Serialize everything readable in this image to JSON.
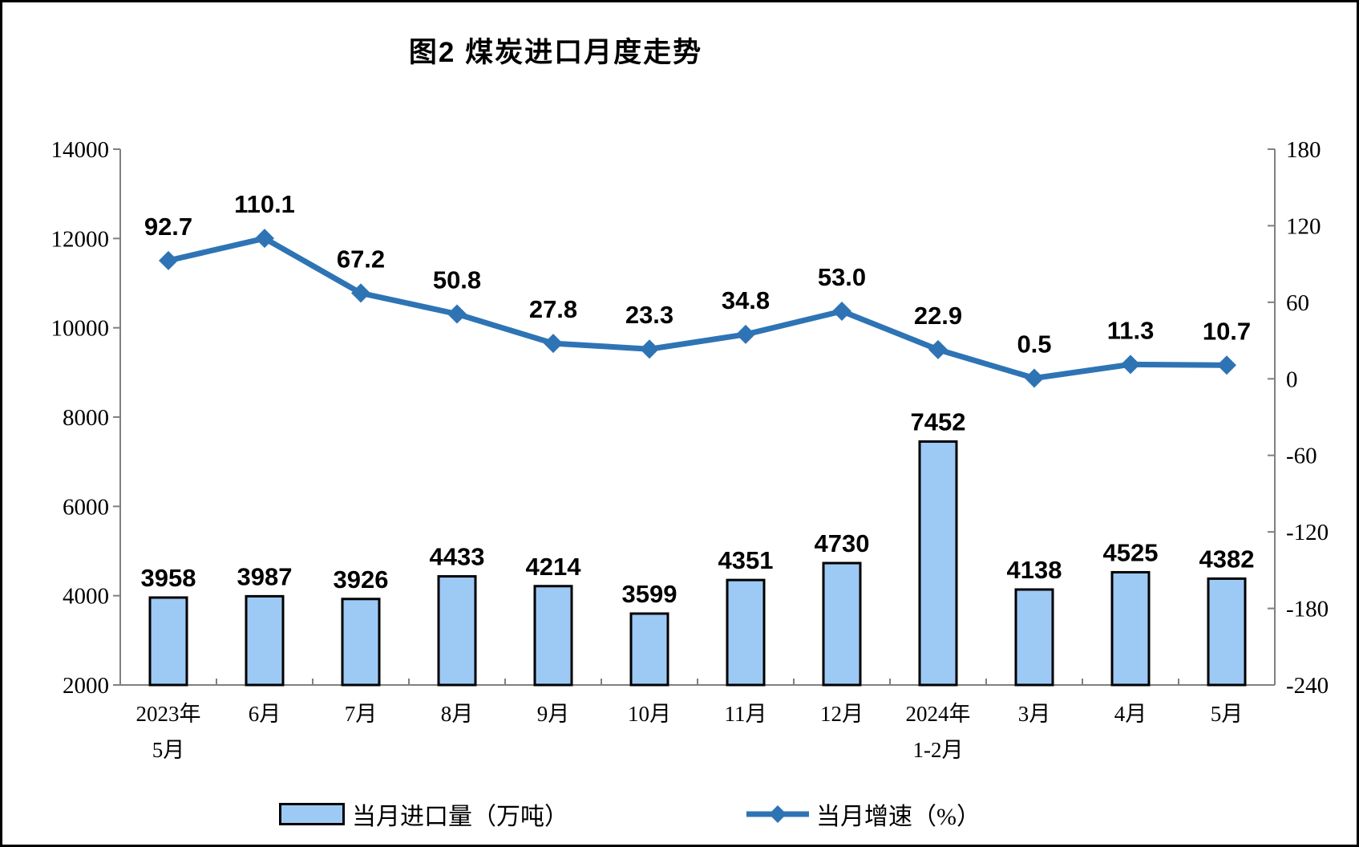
{
  "title": "图2 煤炭进口月度走势",
  "chart_data": {
    "type": "bar",
    "subtype": "combo-bar-line",
    "title": "图2 煤炭进口月度走势",
    "categories": [
      [
        "2023年",
        "5月"
      ],
      [
        "6月",
        ""
      ],
      [
        "7月",
        ""
      ],
      [
        "8月",
        ""
      ],
      [
        "9月",
        ""
      ],
      [
        "10月",
        ""
      ],
      [
        "11月",
        ""
      ],
      [
        "12月",
        ""
      ],
      [
        "2024年",
        "1-2月"
      ],
      [
        "3月",
        ""
      ],
      [
        "4月",
        ""
      ],
      [
        "5月",
        ""
      ]
    ],
    "series": [
      {
        "name": "当月进口量（万吨）",
        "type": "bar",
        "axis": "left",
        "values": [
          3958,
          3987,
          3926,
          4433,
          4214,
          3599,
          4351,
          4730,
          7452,
          4138,
          4525,
          4382
        ],
        "labels": [
          "3958",
          "3987",
          "3926",
          "4433",
          "4214",
          "3599",
          "4351",
          "4730",
          "7452",
          "4138",
          "4525",
          "4382"
        ],
        "color": "#9DC9F5",
        "border_color": "#000000"
      },
      {
        "name": "当月增速（%）",
        "type": "line",
        "axis": "right",
        "values": [
          92.7,
          110.1,
          67.2,
          50.8,
          27.8,
          23.3,
          34.8,
          53.0,
          22.9,
          0.5,
          11.3,
          10.7
        ],
        "labels": [
          "92.7",
          "110.1",
          "67.2",
          "50.8",
          "27.8",
          "23.3",
          "34.8",
          "53.0",
          "22.9",
          "0.5",
          "11.3",
          "10.7"
        ],
        "color": "#2E74B5",
        "marker": "diamond"
      }
    ],
    "left_axis": {
      "min": 2000,
      "max": 14000,
      "ticks": [
        "14000",
        "12000",
        "10000",
        "8000",
        "6000",
        "4000",
        "2000"
      ]
    },
    "right_axis": {
      "min": -240,
      "max": 180,
      "ticks": [
        "180",
        "120",
        "60",
        "0",
        "-60",
        "-120",
        "-180",
        "-240"
      ]
    },
    "grid": "off",
    "legend_position": "bottom",
    "axis_color": "#808080",
    "text_color": "#000000",
    "legend": [
      {
        "label": "当月进口量（万吨）",
        "swatch": "bar"
      },
      {
        "label": "当月增速（%）",
        "swatch": "line"
      }
    ]
  }
}
